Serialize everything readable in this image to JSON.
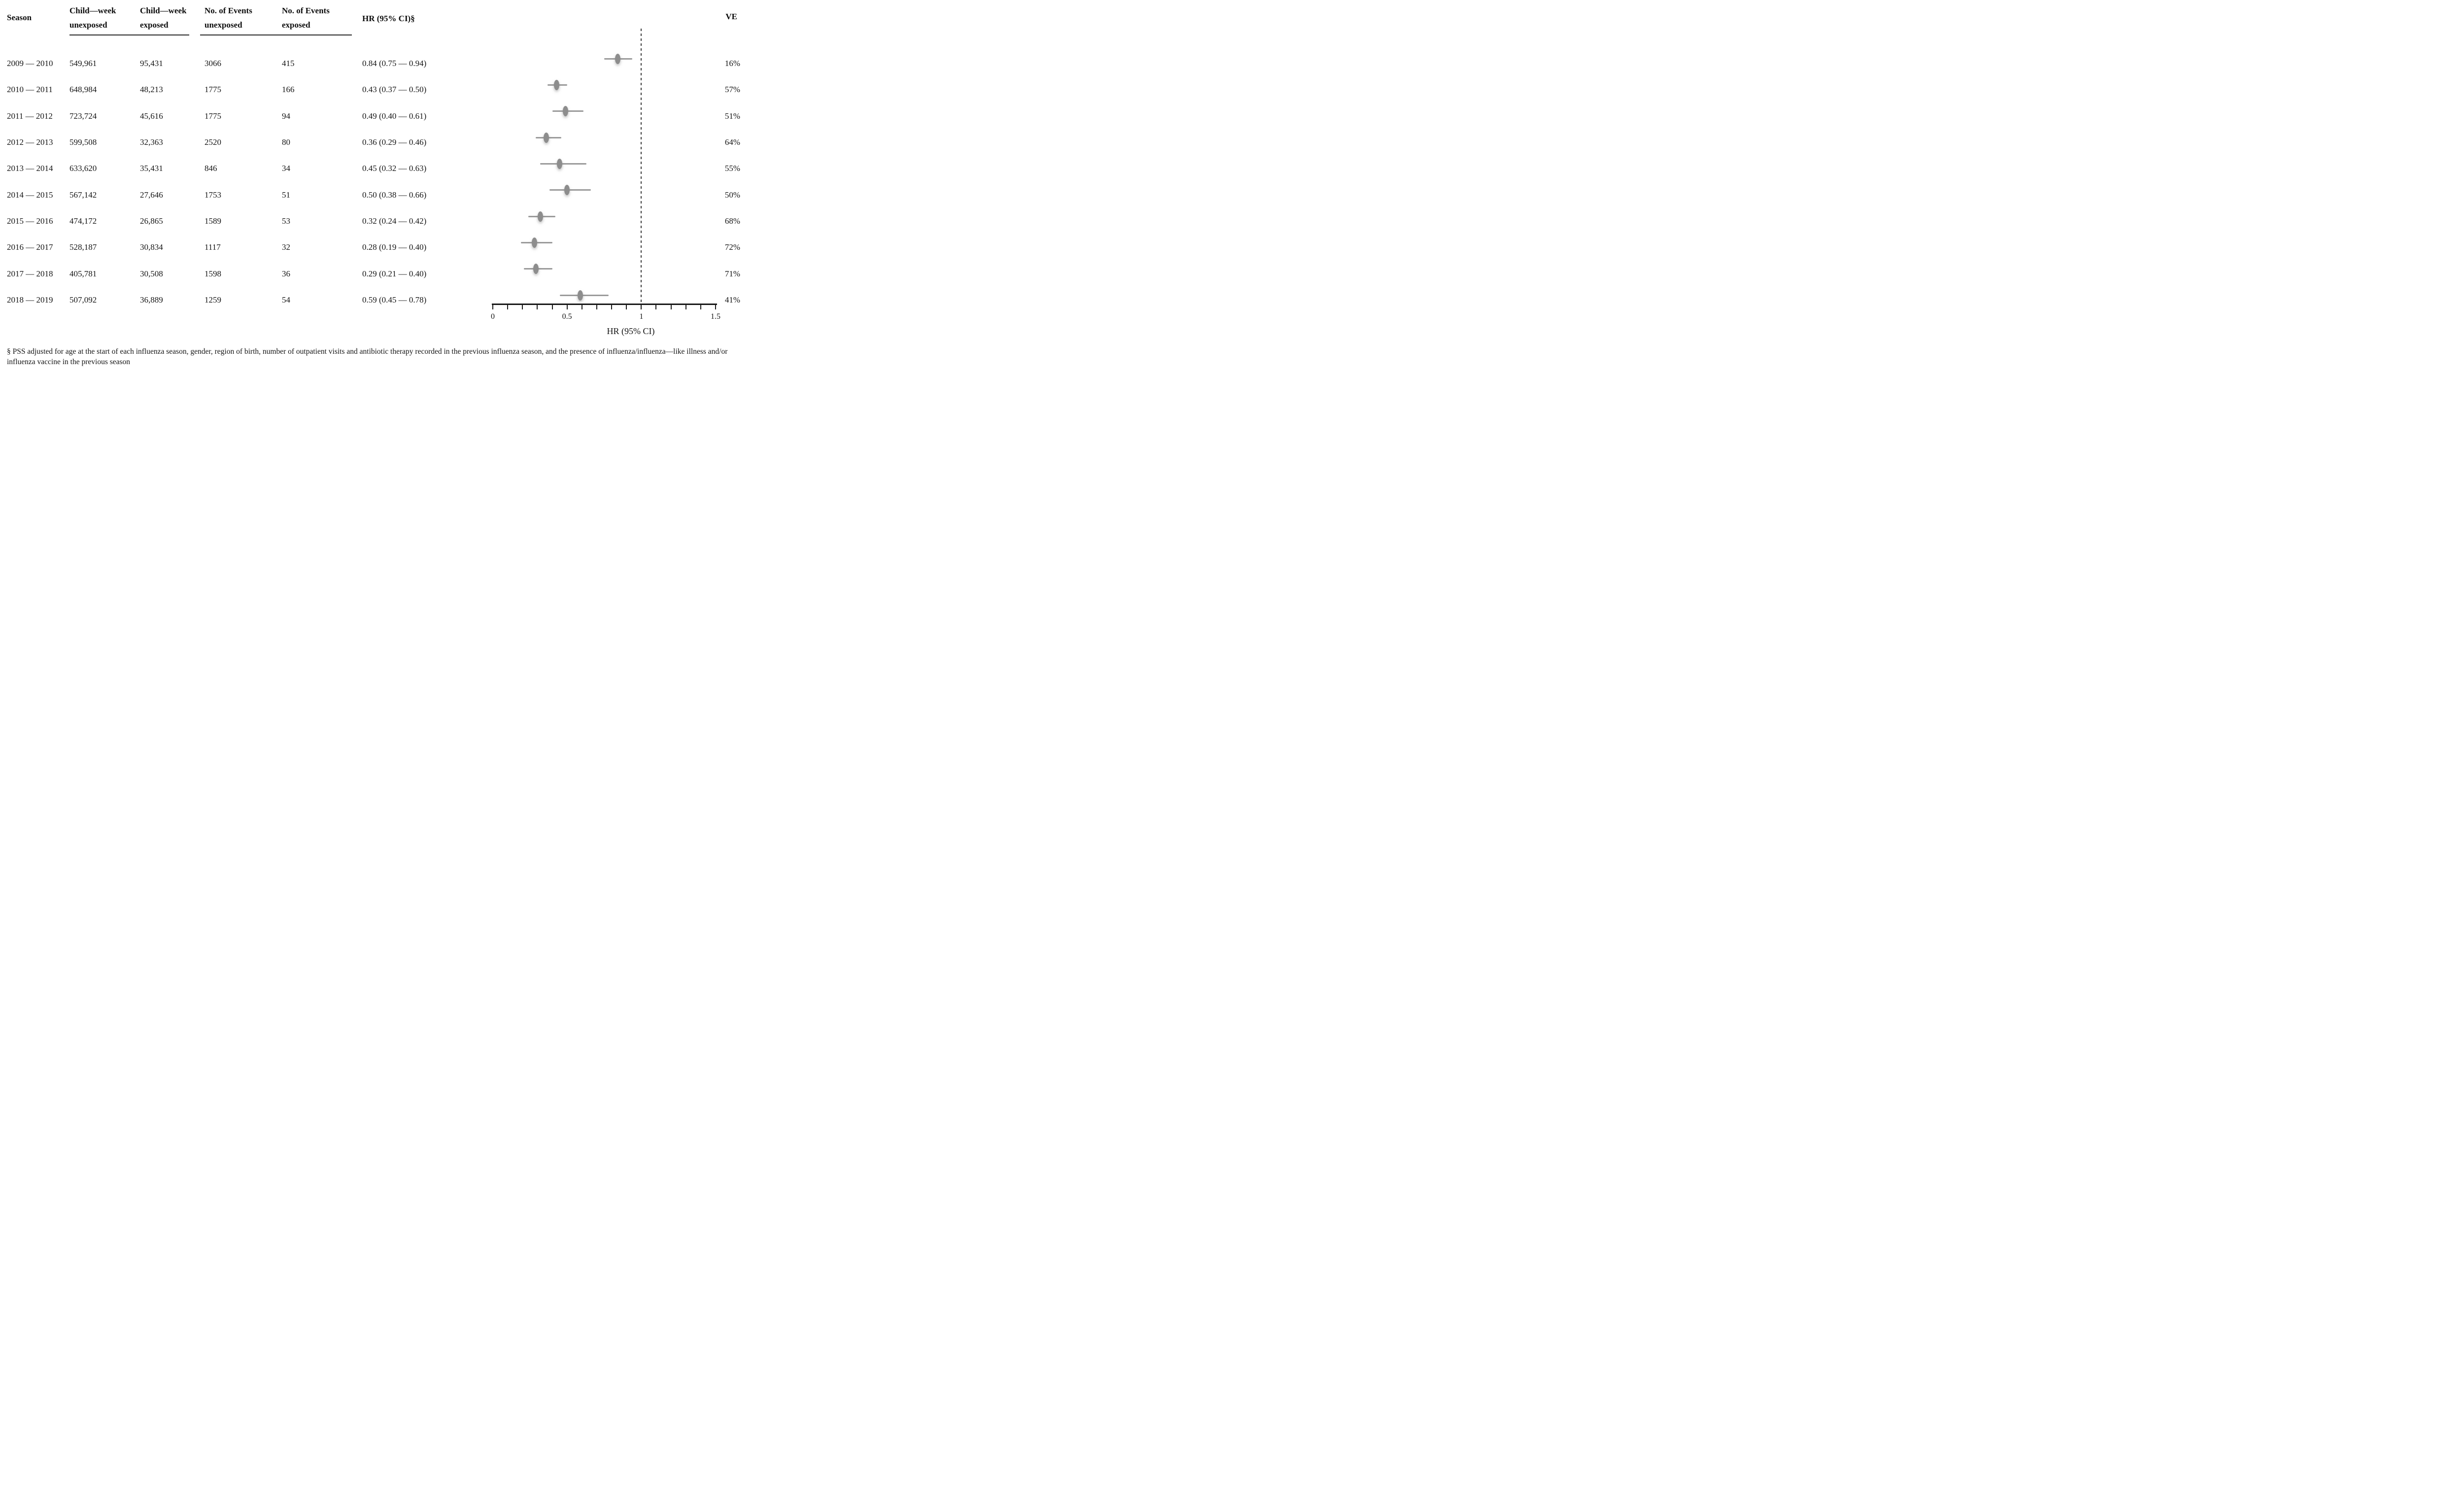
{
  "table": {
    "headers": {
      "season": "Season",
      "child_week_unexposed": "Child—week unexposed",
      "child_week_exposed": "Child—week exposed",
      "events_unexposed": "No. of Events unexposed",
      "events_exposed": "No. of Events exposed",
      "hr_ci": "HR (95% CI)§",
      "ve": "VE"
    },
    "rows": [
      {
        "season": "2009 — 2010",
        "child_week_unexposed": "549,961",
        "child_week_exposed": "95,431",
        "events_unexposed": "3066",
        "events_exposed": "415",
        "hr_ci": "0.84 (0.75 — 0.94)",
        "ve": "16%"
      },
      {
        "season": "2010 — 2011",
        "child_week_unexposed": "648,984",
        "child_week_exposed": "48,213",
        "events_unexposed": "1775",
        "events_exposed": "166",
        "hr_ci": "0.43 (0.37 — 0.50)",
        "ve": "57%"
      },
      {
        "season": "2011 — 2012",
        "child_week_unexposed": "723,724",
        "child_week_exposed": "45,616",
        "events_unexposed": "1775",
        "events_exposed": "94",
        "hr_ci": "0.49 (0.40 — 0.61)",
        "ve": "51%"
      },
      {
        "season": "2012 — 2013",
        "child_week_unexposed": "599,508",
        "child_week_exposed": "32,363",
        "events_unexposed": "2520",
        "events_exposed": "80",
        "hr_ci": "0.36 (0.29 — 0.46)",
        "ve": "64%"
      },
      {
        "season": "2013 — 2014",
        "child_week_unexposed": "633,620",
        "child_week_exposed": "35,431",
        "events_unexposed": "846",
        "events_exposed": "34",
        "hr_ci": "0.45 (0.32 — 0.63)",
        "ve": "55%"
      },
      {
        "season": "2014 — 2015",
        "child_week_unexposed": "567,142",
        "child_week_exposed": "27,646",
        "events_unexposed": "1753",
        "events_exposed": "51",
        "hr_ci": "0.50 (0.38 — 0.66)",
        "ve": "50%"
      },
      {
        "season": "2015 — 2016",
        "child_week_unexposed": "474,172",
        "child_week_exposed": "26,865",
        "events_unexposed": "1589",
        "events_exposed": "53",
        "hr_ci": "0.32 (0.24 — 0.42)",
        "ve": "68%"
      },
      {
        "season": "2016 — 2017",
        "child_week_unexposed": "528,187",
        "child_week_exposed": "30,834",
        "events_unexposed": "1117",
        "events_exposed": "32",
        "hr_ci": "0.28 (0.19 — 0.40)",
        "ve": "72%"
      },
      {
        "season": "2017 — 2018",
        "child_week_unexposed": "405,781",
        "child_week_exposed": "30,508",
        "events_unexposed": "1598",
        "events_exposed": "36",
        "hr_ci": "0.29 (0.21 — 0.40)",
        "ve": "71%"
      },
      {
        "season": "2018 — 2019",
        "child_week_unexposed": "507,092",
        "child_week_exposed": "36,889",
        "events_unexposed": "1259",
        "events_exposed": "54",
        "hr_ci": "0.59 (0.45 — 0.78)",
        "ve": "41%"
      }
    ]
  },
  "chart_data": {
    "type": "scatter",
    "subtype": "forest-plot",
    "categories": [
      "2009 — 2010",
      "2010 — 2011",
      "2011 — 2012",
      "2012 — 2013",
      "2013 — 2014",
      "2014 — 2015",
      "2015 — 2016",
      "2016 — 2017",
      "2017 — 2018",
      "2018 — 2019"
    ],
    "series": [
      {
        "name": "HR",
        "values": [
          0.84,
          0.43,
          0.49,
          0.36,
          0.45,
          0.5,
          0.32,
          0.28,
          0.29,
          0.59
        ]
      },
      {
        "name": "CI_lower",
        "values": [
          0.75,
          0.37,
          0.4,
          0.29,
          0.32,
          0.38,
          0.24,
          0.19,
          0.21,
          0.45
        ]
      },
      {
        "name": "CI_upper",
        "values": [
          0.94,
          0.5,
          0.61,
          0.46,
          0.63,
          0.66,
          0.42,
          0.4,
          0.4,
          0.78
        ]
      }
    ],
    "ve_percent": [
      "16%",
      "57%",
      "51%",
      "64%",
      "55%",
      "50%",
      "68%",
      "72%",
      "71%",
      "41%"
    ],
    "xlabel": "HR (95% CI)",
    "xlim": [
      0,
      1.5
    ],
    "xticks": [
      0,
      0.5,
      1,
      1.5
    ],
    "minor_tick_step": 0.1,
    "reference_line_x": 1,
    "grid": false,
    "marker_color": "#8d8d8d",
    "ci_color": "#9b9b9b"
  },
  "footnote": "§ PSS adjusted for age at the start of each influenza season, gender, region of birth, number of outpatient visits and antibiotic therapy recorded in the previous influenza season, and the presence of influenza/influenza—like illness and/or influenza vaccine in the previous season"
}
